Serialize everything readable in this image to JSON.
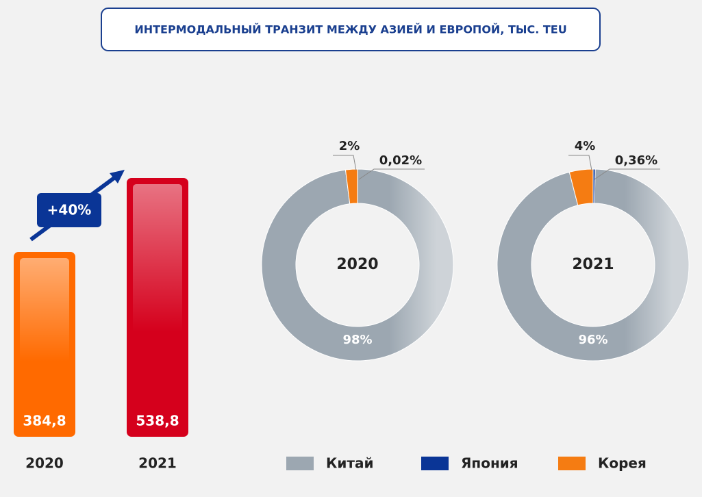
{
  "title": "ИНТЕРМОДАЛЬНЫЙ ТРАНЗИТ МЕЖДУ АЗИЕЙ И ЕВРОПОЙ, ТЫС. TEU",
  "chart_data": [
    {
      "type": "bar",
      "categories": [
        "2020",
        "2021"
      ],
      "values": [
        384.8,
        538.8
      ],
      "value_labels": [
        "384,8",
        "538,8"
      ],
      "colors": [
        "#ff6a00",
        "#d5001c"
      ],
      "annotation": "+40%"
    },
    {
      "type": "pie",
      "title": "2020",
      "categories": [
        "Китай",
        "Япония",
        "Корея"
      ],
      "values": [
        98,
        0.02,
        2
      ],
      "value_labels": [
        "98%",
        "0,02%",
        "2%"
      ],
      "colors": [
        "#9ca7b1",
        "#0a3596",
        "#f57c12"
      ]
    },
    {
      "type": "pie",
      "title": "2021",
      "values": [
        96,
        0.36,
        4
      ],
      "value_labels": [
        "96%",
        "0,36%",
        "4%"
      ],
      "colors": [
        "#9ca7b1",
        "#0a3596",
        "#f57c12"
      ]
    }
  ]
}
